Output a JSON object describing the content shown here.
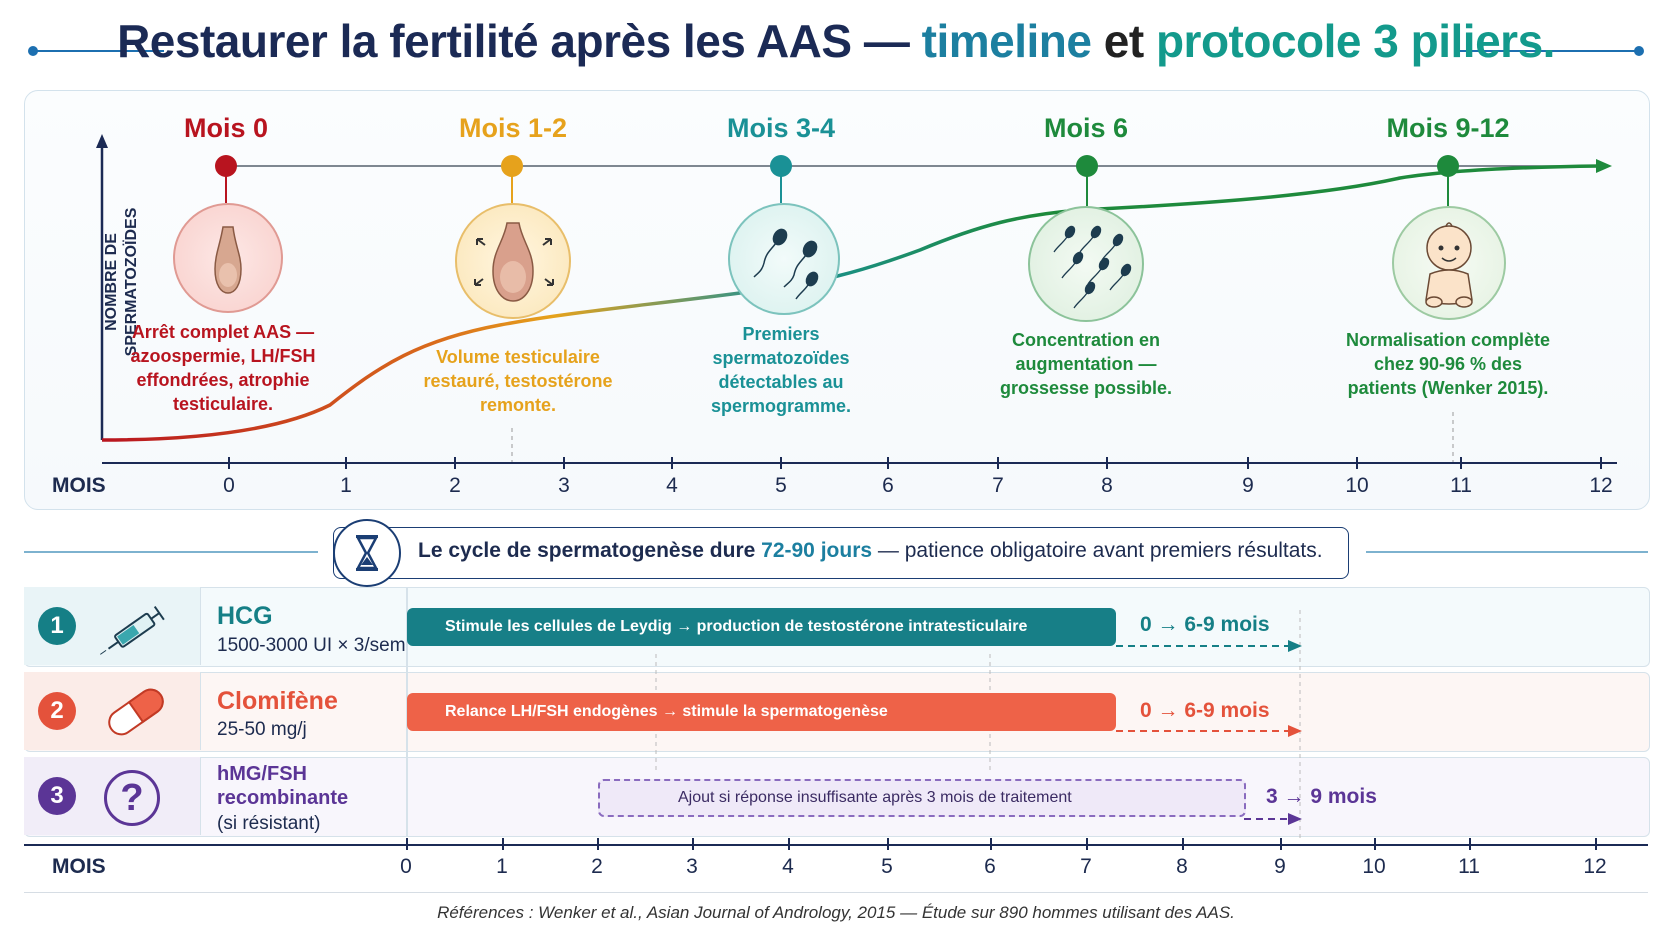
{
  "title": {
    "part1": "Restaurer la fertilité après les AAS —",
    "part2": "timeline",
    "part3": "et",
    "part4": "protocole 3 piliers."
  },
  "y_axis_label_line1": "NOMBRE DE",
  "y_axis_label_line2": "SPERMATOZOÏDES",
  "axis_label": "MOIS",
  "top_axis_ticks": [
    "0",
    "1",
    "2",
    "3",
    "4",
    "5",
    "6",
    "7",
    "8",
    "9",
    "10",
    "11",
    "12"
  ],
  "stages": [
    {
      "label": "Mois 0",
      "color": "#b8141f",
      "icon": "testicle-atrophied-icon",
      "desc": [
        "Arrêt complet AAS —",
        "azoospermie, LH/FSH",
        "effondrées, atrophie",
        "testiculaire."
      ]
    },
    {
      "label": "Mois 1-2",
      "color": "#e6a21c",
      "icon": "testicle-growing-icon",
      "desc": [
        "Volume testiculaire",
        "restauré, testostérone",
        "remonte."
      ]
    },
    {
      "label": "Mois 3-4",
      "color": "#1a9196",
      "icon": "sperm-few-icon",
      "desc": [
        "Premiers",
        "spermatozoïdes",
        "détectables au",
        "spermogramme."
      ]
    },
    {
      "label": "Mois 6",
      "color": "#1e8a3c",
      "icon": "sperm-many-icon",
      "desc": [
        "Concentration en",
        "augmentation —",
        "grossesse possible."
      ]
    },
    {
      "label": "Mois 9-12",
      "color": "#1e8a3c",
      "icon": "baby-icon",
      "desc": [
        "Normalisation complète",
        "chez 90-96 % des",
        "patients (Wenker 2015)."
      ]
    }
  ],
  "cycle": {
    "text_bold": "Le cycle de spermatogenèse dure ",
    "highlight": "72-90 jours",
    "rest": " — patience obligatoire avant premiers résultats.",
    "icon": "hourglass-icon"
  },
  "pillars": [
    {
      "number": "1",
      "number_color": "#157f86",
      "icon": "syringe-icon",
      "name": "HCG",
      "name_color": "#157f86",
      "dose": "1500-3000 UI × 3/sem",
      "bar_text": "Stimule les cellules de Leydig → production de testostérone intratesticulaire",
      "bar_color": "#177f87",
      "duration": "0 → 6-9 mois",
      "duration_color": "#157f86",
      "row_bg": "#f4fafc"
    },
    {
      "number": "2",
      "number_color": "#e4523b",
      "icon": "capsule-icon",
      "name": "Clomifène",
      "name_color": "#e4523b",
      "dose": "25-50 mg/j",
      "bar_text": "Relance LH/FSH endogènes → stimule la spermatogenèse",
      "bar_color": "#ee6248",
      "duration": "0 → 6-9 mois",
      "duration_color": "#e4523b",
      "row_bg": "#fdf6f4"
    },
    {
      "number": "3",
      "number_color": "#5b3596",
      "icon": "question-mark-icon",
      "name_line1": "hMG/FSH",
      "name_line2": "recombinante",
      "dose": "(si résistant)",
      "name_color": "#5b3596",
      "bar_text": "Ajout si réponse insuffisante après 3 mois de traitement",
      "bar_color": "#efe9f8",
      "duration": "3 → 9 mois",
      "duration_color": "#5b3596",
      "row_bg": "#f8f6fc"
    }
  ],
  "bottom_axis_ticks": [
    "0",
    "1",
    "2",
    "3",
    "4",
    "5",
    "6",
    "7",
    "8",
    "9",
    "10",
    "11",
    "12"
  ],
  "references": "Références : Wenker et al., Asian Journal of Andrology, 2015 — Étude sur 890 hommes utilisant des AAS."
}
